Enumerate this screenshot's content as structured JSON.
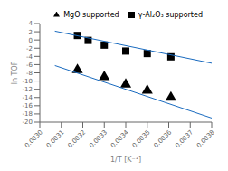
{
  "chart_data": {
    "type": "scatter",
    "title": "",
    "xlabel": "1/T [K⁻¹]",
    "ylabel": "ln TOF",
    "xlim": [
      0.003,
      0.0038
    ],
    "ylim": [
      -20,
      4
    ],
    "xticks": [
      {
        "value": 0.003,
        "label": "0.0030"
      },
      0.0031,
      0.0032,
      0.0033,
      0.0034,
      0.0035,
      0.0036,
      0.0037,
      0.0038
    ],
    "yticks": [
      -20,
      -18,
      -16,
      -14,
      -12,
      -10,
      -8,
      -6,
      -4,
      -2,
      0,
      2,
      4
    ],
    "grid": false,
    "legend": "upper right",
    "series": [
      {
        "name": "γ-Al₂O₃ supported",
        "type": "scatter",
        "marker": "square",
        "color": "black",
        "x": [
          0.003175,
          0.003225,
          0.0033,
          0.0034,
          0.0035,
          0.00361
        ],
        "values": [
          1.1,
          -0.1,
          -1.25,
          -2.7,
          -3.3,
          -4.1
        ]
      },
      {
        "name": "MgO supported",
        "type": "scatter",
        "marker": "triangle",
        "color": "black",
        "x": [
          0.003175,
          0.0033,
          0.0034,
          0.0035,
          0.00361
        ],
        "values": [
          -7.3,
          -9.0,
          -10.8,
          -12.3,
          -14.0
        ]
      },
      {
        "type": "line",
        "color": "#1a6bbf",
        "x": [
          0.00307,
          0.0038
        ],
        "values": [
          2.151,
          -5.66
        ]
      },
      {
        "type": "line",
        "color": "#1a6bbf",
        "x": [
          0.00307,
          0.0038
        ],
        "values": [
          -6.225,
          -19.0
        ]
      }
    ]
  }
}
